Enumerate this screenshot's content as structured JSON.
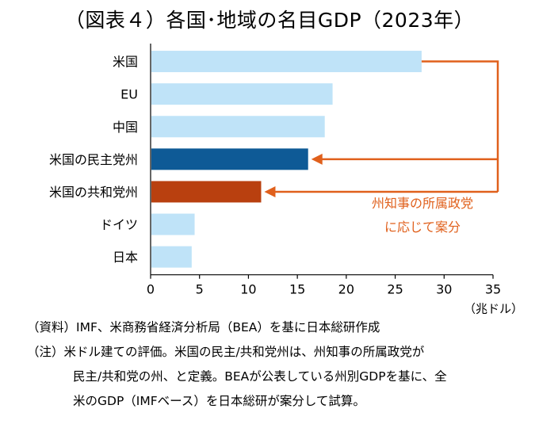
{
  "title": "（図表４）各国･地域の名目GDP（2023年）",
  "chart_data": {
    "type": "bar",
    "orientation": "horizontal",
    "categories": [
      "米国",
      "EU",
      "中国",
      "米国の民主党州",
      "米国の共和党州",
      "ドイツ",
      "日本"
    ],
    "values": [
      27.7,
      18.6,
      17.8,
      16.1,
      11.3,
      4.5,
      4.2
    ],
    "colors": [
      "#bfe3f8",
      "#bfe3f8",
      "#bfe3f8",
      "#0e5a96",
      "#b9400f",
      "#bfe3f8",
      "#bfe3f8"
    ],
    "xlim": [
      0,
      35
    ],
    "xticks": [
      "0",
      "5",
      "10",
      "15",
      "20",
      "25",
      "30",
      "35"
    ],
    "xunit": "（兆ドル）",
    "annotation": {
      "lines": [
        "州知事の所属政党",
        "に応じて案分"
      ],
      "color": "#e0601c"
    },
    "grid": false
  },
  "notes": {
    "source_label": "（資料）",
    "source_text": "IMF、米商務省経済分析局（BEA）を基に日本総研作成",
    "note_label": "（注）",
    "note_lines": [
      "米ドル建ての評価。米国の民主/共和党州は、州知事の所属政党が",
      "民主/共和党の州、と定義。BEAが公表している州別GDPを基に、全",
      "米のGDP（IMFベース）を日本総研が案分して試算。"
    ]
  }
}
